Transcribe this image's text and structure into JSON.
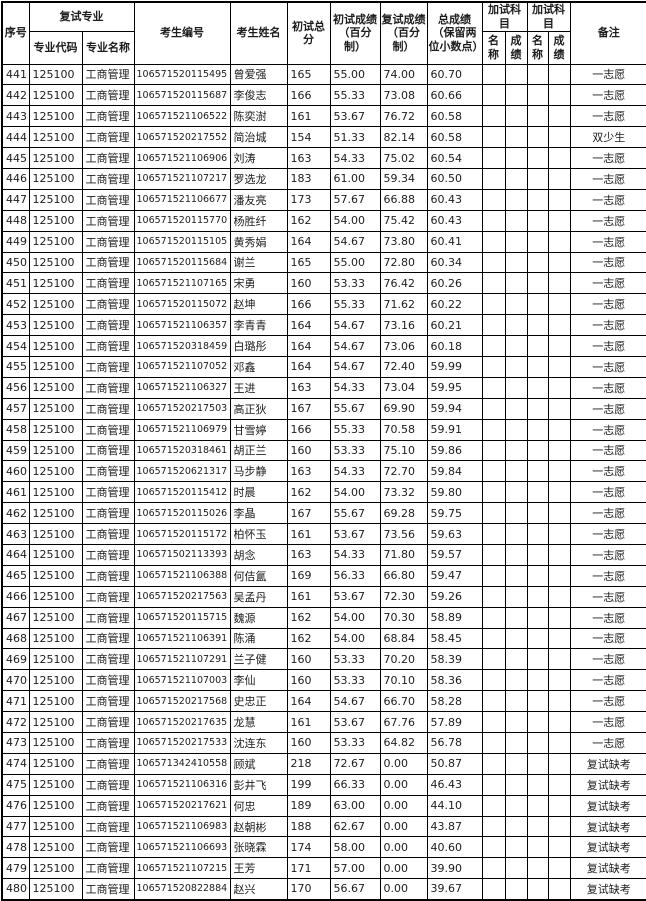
{
  "colors": {
    "border": "#000000",
    "text": "#1c1c1c",
    "background": "#ffffff"
  },
  "table": {
    "header": {
      "col_no": "序号",
      "group_retest_major": "复试专业",
      "col_major_code": "专业代码",
      "col_major_name": "专业名称",
      "col_candidate_id": "考生编号",
      "col_candidate_name": "考生姓名",
      "col_initial_total": "初试总分",
      "col_initial_pct": "初试成绩（百分制）",
      "col_retest_pct": "复试成绩（百分制）",
      "col_final_score": "总成绩（保留两位小数点）",
      "group_extra_subject_1": "加试科目",
      "group_extra_subject_2": "加试科目",
      "col_extra_name": "名称",
      "col_extra_score": "成绩",
      "col_remark": "备注"
    },
    "rows": [
      [
        441,
        "125100",
        "工商管理",
        "106571520115495",
        "曾爱强",
        "165",
        "55.00",
        "74.00",
        "60.70",
        "",
        "",
        "",
        "",
        "一志愿"
      ],
      [
        442,
        "125100",
        "工商管理",
        "106571520115687",
        "李俊志",
        "166",
        "55.33",
        "73.08",
        "60.66",
        "",
        "",
        "",
        "",
        "一志愿"
      ],
      [
        443,
        "125100",
        "工商管理",
        "106571521106522",
        "陈奕澍",
        "161",
        "53.67",
        "76.72",
        "60.58",
        "",
        "",
        "",
        "",
        "一志愿"
      ],
      [
        444,
        "125100",
        "工商管理",
        "106571520217552",
        "简治城",
        "154",
        "51.33",
        "82.14",
        "60.58",
        "",
        "",
        "",
        "",
        "双少生"
      ],
      [
        445,
        "125100",
        "工商管理",
        "106571521106906",
        "刘涛",
        "163",
        "54.33",
        "75.02",
        "60.54",
        "",
        "",
        "",
        "",
        "一志愿"
      ],
      [
        446,
        "125100",
        "工商管理",
        "106571521107217",
        "罗选龙",
        "183",
        "61.00",
        "59.34",
        "60.50",
        "",
        "",
        "",
        "",
        "一志愿"
      ],
      [
        447,
        "125100",
        "工商管理",
        "106571521106677",
        "潘友亮",
        "173",
        "57.67",
        "66.88",
        "60.43",
        "",
        "",
        "",
        "",
        "一志愿"
      ],
      [
        448,
        "125100",
        "工商管理",
        "106571520115770",
        "杨胜纤",
        "162",
        "54.00",
        "75.42",
        "60.43",
        "",
        "",
        "",
        "",
        "一志愿"
      ],
      [
        449,
        "125100",
        "工商管理",
        "106571520115105",
        "黄秀娟",
        "164",
        "54.67",
        "73.80",
        "60.41",
        "",
        "",
        "",
        "",
        "一志愿"
      ],
      [
        450,
        "125100",
        "工商管理",
        "106571520115684",
        "谢兰",
        "165",
        "55.00",
        "72.80",
        "60.34",
        "",
        "",
        "",
        "",
        "一志愿"
      ],
      [
        451,
        "125100",
        "工商管理",
        "106571521107165",
        "宋勇",
        "160",
        "53.33",
        "76.42",
        "60.26",
        "",
        "",
        "",
        "",
        "一志愿"
      ],
      [
        452,
        "125100",
        "工商管理",
        "106571520115072",
        "赵坤",
        "166",
        "55.33",
        "71.62",
        "60.22",
        "",
        "",
        "",
        "",
        "一志愿"
      ],
      [
        453,
        "125100",
        "工商管理",
        "106571521106357",
        "李青青",
        "164",
        "54.67",
        "73.16",
        "60.21",
        "",
        "",
        "",
        "",
        "一志愿"
      ],
      [
        454,
        "125100",
        "工商管理",
        "106571520318459",
        "白璐彤",
        "164",
        "54.67",
        "73.06",
        "60.18",
        "",
        "",
        "",
        "",
        "一志愿"
      ],
      [
        455,
        "125100",
        "工商管理",
        "106571521107052",
        "邓鑫",
        "164",
        "54.67",
        "72.40",
        "59.99",
        "",
        "",
        "",
        "",
        "一志愿"
      ],
      [
        456,
        "125100",
        "工商管理",
        "106571521106327",
        "王进",
        "163",
        "54.33",
        "73.04",
        "59.95",
        "",
        "",
        "",
        "",
        "一志愿"
      ],
      [
        457,
        "125100",
        "工商管理",
        "106571520217503",
        "高正狄",
        "167",
        "55.67",
        "69.90",
        "59.94",
        "",
        "",
        "",
        "",
        "一志愿"
      ],
      [
        458,
        "125100",
        "工商管理",
        "106571521106979",
        "甘雪婷",
        "166",
        "55.33",
        "70.58",
        "59.91",
        "",
        "",
        "",
        "",
        "一志愿"
      ],
      [
        459,
        "125100",
        "工商管理",
        "106571520318461",
        "胡正兰",
        "160",
        "53.33",
        "75.10",
        "59.86",
        "",
        "",
        "",
        "",
        "一志愿"
      ],
      [
        460,
        "125100",
        "工商管理",
        "106571520621317",
        "马步静",
        "163",
        "54.33",
        "72.70",
        "59.84",
        "",
        "",
        "",
        "",
        "一志愿"
      ],
      [
        461,
        "125100",
        "工商管理",
        "106571520115412",
        "时晨",
        "162",
        "54.00",
        "73.32",
        "59.80",
        "",
        "",
        "",
        "",
        "一志愿"
      ],
      [
        462,
        "125100",
        "工商管理",
        "106571520115026",
        "李晶",
        "167",
        "55.67",
        "69.28",
        "59.75",
        "",
        "",
        "",
        "",
        "一志愿"
      ],
      [
        463,
        "125100",
        "工商管理",
        "106571520115172",
        "柏怀玉",
        "161",
        "53.67",
        "73.56",
        "59.63",
        "",
        "",
        "",
        "",
        "一志愿"
      ],
      [
        464,
        "125100",
        "工商管理",
        "106571502113393",
        "胡念",
        "163",
        "54.33",
        "71.80",
        "59.57",
        "",
        "",
        "",
        "",
        "一志愿"
      ],
      [
        465,
        "125100",
        "工商管理",
        "106571521106388",
        "何佶氲",
        "169",
        "56.33",
        "66.80",
        "59.47",
        "",
        "",
        "",
        "",
        "一志愿"
      ],
      [
        466,
        "125100",
        "工商管理",
        "106571520217563",
        "吴孟丹",
        "161",
        "53.67",
        "72.30",
        "59.26",
        "",
        "",
        "",
        "",
        "一志愿"
      ],
      [
        467,
        "125100",
        "工商管理",
        "106571520115715",
        "魏源",
        "162",
        "54.00",
        "70.30",
        "58.89",
        "",
        "",
        "",
        "",
        "一志愿"
      ],
      [
        468,
        "125100",
        "工商管理",
        "106571521106391",
        "陈涌",
        "162",
        "54.00",
        "68.84",
        "58.45",
        "",
        "",
        "",
        "",
        "一志愿"
      ],
      [
        469,
        "125100",
        "工商管理",
        "106571521107291",
        "兰子健",
        "160",
        "53.33",
        "70.20",
        "58.39",
        "",
        "",
        "",
        "",
        "一志愿"
      ],
      [
        470,
        "125100",
        "工商管理",
        "106571521107003",
        "李仙",
        "160",
        "53.33",
        "70.10",
        "58.36",
        "",
        "",
        "",
        "",
        "一志愿"
      ],
      [
        471,
        "125100",
        "工商管理",
        "106571520217568",
        "史忠正",
        "164",
        "54.67",
        "66.70",
        "58.28",
        "",
        "",
        "",
        "",
        "一志愿"
      ],
      [
        472,
        "125100",
        "工商管理",
        "106571520217635",
        "龙慧",
        "161",
        "53.67",
        "67.76",
        "57.89",
        "",
        "",
        "",
        "",
        "一志愿"
      ],
      [
        473,
        "125100",
        "工商管理",
        "106571520217533",
        "沈连东",
        "160",
        "53.33",
        "64.82",
        "56.78",
        "",
        "",
        "",
        "",
        "一志愿"
      ],
      [
        474,
        "125100",
        "工商管理",
        "106571342410558",
        "顾斌",
        "218",
        "72.67",
        "0.00",
        "50.87",
        "",
        "",
        "",
        "",
        "复试缺考"
      ],
      [
        475,
        "125100",
        "工商管理",
        "106571521106316",
        "彭井飞",
        "199",
        "66.33",
        "0.00",
        "46.43",
        "",
        "",
        "",
        "",
        "复试缺考"
      ],
      [
        476,
        "125100",
        "工商管理",
        "106571520217621",
        "何忠",
        "189",
        "63.00",
        "0.00",
        "44.10",
        "",
        "",
        "",
        "",
        "复试缺考"
      ],
      [
        477,
        "125100",
        "工商管理",
        "106571521106983",
        "赵朝彬",
        "188",
        "62.67",
        "0.00",
        "43.87",
        "",
        "",
        "",
        "",
        "复试缺考"
      ],
      [
        478,
        "125100",
        "工商管理",
        "106571521106693",
        "张晓霖",
        "174",
        "58.00",
        "0.00",
        "40.60",
        "",
        "",
        "",
        "",
        "复试缺考"
      ],
      [
        479,
        "125100",
        "工商管理",
        "106571521107215",
        "王芳",
        "171",
        "57.00",
        "0.00",
        "39.90",
        "",
        "",
        "",
        "",
        "复试缺考"
      ],
      [
        480,
        "125100",
        "工商管理",
        "106571520822884",
        "赵兴",
        "170",
        "56.67",
        "0.00",
        "39.67",
        "",
        "",
        "",
        "",
        "复试缺考"
      ]
    ]
  }
}
